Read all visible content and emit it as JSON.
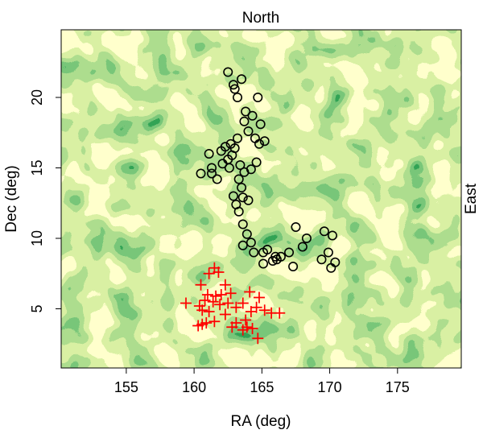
{
  "chart_data": {
    "type": "scatter",
    "title": "North",
    "right_label": "East",
    "xlabel": "RA (deg)",
    "ylabel": "Dec (deg)",
    "xlim": [
      150.2,
      179.7
    ],
    "ylim": [
      0.8,
      24.8
    ],
    "x_ticks": [
      155,
      160,
      165,
      170,
      175
    ],
    "y_ticks": [
      5,
      10,
      15,
      20
    ],
    "grid": false,
    "background": {
      "kind": "density-contours",
      "colors": [
        "#ffffcc",
        "#d9f0a3",
        "#addd8e",
        "#78c679",
        "#31a354",
        "#006837"
      ]
    },
    "series": [
      {
        "marker": "open-circle",
        "color": "#000000",
        "points": [
          [
            162.5,
            21.8
          ],
          [
            163.5,
            21.3
          ],
          [
            163.0,
            20.6
          ],
          [
            162.9,
            20.9
          ],
          [
            163.2,
            20.0
          ],
          [
            164.7,
            20.0
          ],
          [
            163.8,
            19.0
          ],
          [
            164.3,
            18.7
          ],
          [
            163.7,
            18.3
          ],
          [
            164.9,
            18.1
          ],
          [
            164.0,
            17.6
          ],
          [
            164.5,
            17.1
          ],
          [
            164.8,
            16.7
          ],
          [
            165.2,
            16.9
          ],
          [
            163.2,
            17.1
          ],
          [
            162.3,
            16.5
          ],
          [
            163.0,
            16.4
          ],
          [
            162.0,
            16.2
          ],
          [
            162.8,
            15.9
          ],
          [
            162.5,
            15.6
          ],
          [
            162.1,
            15.3
          ],
          [
            162.6,
            15.0
          ],
          [
            163.4,
            15.2
          ],
          [
            164.6,
            15.4
          ],
          [
            161.1,
            16.0
          ],
          [
            161.3,
            15.0
          ],
          [
            160.5,
            14.6
          ],
          [
            161.7,
            14.2
          ],
          [
            161.3,
            14.6
          ],
          [
            163.7,
            14.7
          ],
          [
            164.2,
            14.9
          ],
          [
            163.3,
            14.2
          ],
          [
            163.5,
            13.6
          ],
          [
            164.0,
            12.7
          ],
          [
            163.6,
            12.9
          ],
          [
            162.9,
            13.0
          ],
          [
            163.1,
            12.4
          ],
          [
            163.3,
            11.9
          ],
          [
            163.6,
            11.0
          ],
          [
            163.9,
            10.3
          ],
          [
            164.2,
            9.7
          ],
          [
            163.6,
            9.5
          ],
          [
            164.4,
            9.0
          ],
          [
            165.4,
            9.2
          ],
          [
            166.0,
            8.7
          ],
          [
            166.4,
            8.7
          ],
          [
            166.1,
            8.5
          ],
          [
            165.8,
            8.4
          ],
          [
            165.1,
            8.2
          ],
          [
            167.0,
            9.0
          ],
          [
            168.0,
            9.4
          ],
          [
            168.3,
            10.0
          ],
          [
            167.5,
            10.8
          ],
          [
            167.3,
            8.0
          ],
          [
            169.4,
            8.5
          ],
          [
            169.6,
            10.5
          ],
          [
            170.2,
            10.2
          ],
          [
            169.9,
            9.0
          ],
          [
            170.4,
            8.3
          ],
          [
            170.1,
            7.9
          ],
          [
            165.1,
            9.0
          ],
          [
            162.7,
            16.7
          ]
        ]
      },
      {
        "marker": "plus",
        "color": "#ff0000",
        "points": [
          [
            161.5,
            7.9
          ],
          [
            161.1,
            7.5
          ],
          [
            161.8,
            7.6
          ],
          [
            162.3,
            6.7
          ],
          [
            160.5,
            6.7
          ],
          [
            162.7,
            6.1
          ],
          [
            161.0,
            6.0
          ],
          [
            161.6,
            5.9
          ],
          [
            162.0,
            6.0
          ],
          [
            160.8,
            5.6
          ],
          [
            161.4,
            5.5
          ],
          [
            161.9,
            5.3
          ],
          [
            162.5,
            5.4
          ],
          [
            160.4,
            5.2
          ],
          [
            159.4,
            5.4
          ],
          [
            160.6,
            4.9
          ],
          [
            161.1,
            4.8
          ],
          [
            163.1,
            5.1
          ],
          [
            164.1,
            6.2
          ],
          [
            164.8,
            5.8
          ],
          [
            164.6,
            5.1
          ],
          [
            163.6,
            5.4
          ],
          [
            164.2,
            4.8
          ],
          [
            165.2,
            4.9
          ],
          [
            165.7,
            4.7
          ],
          [
            166.3,
            4.7
          ],
          [
            163.8,
            4.2
          ],
          [
            162.3,
            4.6
          ],
          [
            161.5,
            4.1
          ],
          [
            160.9,
            4.0
          ],
          [
            160.6,
            3.9
          ],
          [
            160.3,
            3.8
          ],
          [
            163.9,
            3.7
          ],
          [
            163.6,
            3.5
          ],
          [
            162.8,
            3.7
          ],
          [
            163.1,
            4.0
          ],
          [
            164.3,
            3.6
          ],
          [
            164.7,
            2.9
          ]
        ]
      }
    ]
  }
}
